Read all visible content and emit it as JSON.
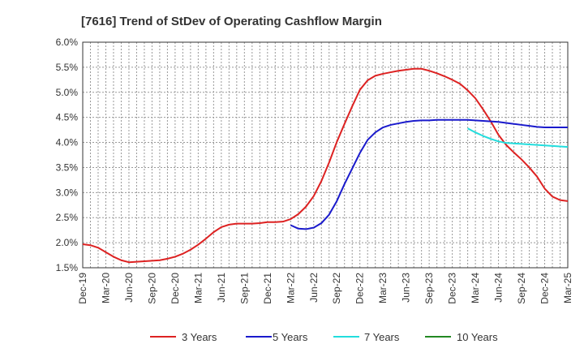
{
  "chart_data": {
    "type": "line",
    "title": "[7616]  Trend of StDev of Operating Cashflow Margin",
    "xlabel": "",
    "ylabel": "",
    "x_ticks": [
      "Dec-19",
      "Mar-20",
      "Jun-20",
      "Sep-20",
      "Dec-20",
      "Mar-21",
      "Jun-21",
      "Sep-21",
      "Dec-21",
      "Mar-22",
      "Jun-22",
      "Sep-22",
      "Dec-22",
      "Mar-23",
      "Jun-23",
      "Sep-23",
      "Dec-23",
      "Mar-24",
      "Jun-24",
      "Sep-24",
      "Dec-24",
      "Mar-25"
    ],
    "y_ticks": [
      "1.5%",
      "2.0%",
      "2.5%",
      "3.0%",
      "3.5%",
      "4.0%",
      "4.5%",
      "5.0%",
      "5.5%",
      "6.0%"
    ],
    "ylim": [
      1.5,
      6.0
    ],
    "grid": true,
    "legend_position": "bottom",
    "series": [
      {
        "name": "3 Years",
        "color": "#dd2222",
        "points": [
          [
            "Dec-19",
            1.97
          ],
          [
            "Jan-20",
            1.95
          ],
          [
            "Feb-20",
            1.9
          ],
          [
            "Mar-20",
            1.81
          ],
          [
            "Apr-20",
            1.72
          ],
          [
            "May-20",
            1.65
          ],
          [
            "Jun-20",
            1.61
          ],
          [
            "Jul-20",
            1.62
          ],
          [
            "Aug-20",
            1.63
          ],
          [
            "Sep-20",
            1.64
          ],
          [
            "Oct-20",
            1.65
          ],
          [
            "Nov-20",
            1.68
          ],
          [
            "Dec-20",
            1.72
          ],
          [
            "Jan-21",
            1.78
          ],
          [
            "Feb-21",
            1.86
          ],
          [
            "Mar-21",
            1.96
          ],
          [
            "Apr-21",
            2.08
          ],
          [
            "May-21",
            2.21
          ],
          [
            "Jun-21",
            2.31
          ],
          [
            "Jul-21",
            2.36
          ],
          [
            "Aug-21",
            2.38
          ],
          [
            "Sep-21",
            2.38
          ],
          [
            "Oct-21",
            2.38
          ],
          [
            "Nov-21",
            2.39
          ],
          [
            "Dec-21",
            2.41
          ],
          [
            "Jan-22",
            2.41
          ],
          [
            "Feb-22",
            2.42
          ],
          [
            "Mar-22",
            2.47
          ],
          [
            "Apr-22",
            2.57
          ],
          [
            "May-22",
            2.72
          ],
          [
            "Jun-22",
            2.93
          ],
          [
            "Jul-22",
            3.23
          ],
          [
            "Aug-22",
            3.6
          ],
          [
            "Sep-22",
            4.01
          ],
          [
            "Oct-22",
            4.37
          ],
          [
            "Nov-22",
            4.72
          ],
          [
            "Dec-22",
            5.05
          ],
          [
            "Jan-23",
            5.24
          ],
          [
            "Feb-23",
            5.33
          ],
          [
            "Mar-23",
            5.37
          ],
          [
            "Apr-23",
            5.4
          ],
          [
            "May-23",
            5.43
          ],
          [
            "Jun-23",
            5.45
          ],
          [
            "Jul-23",
            5.47
          ],
          [
            "Aug-23",
            5.47
          ],
          [
            "Sep-23",
            5.43
          ],
          [
            "Oct-23",
            5.38
          ],
          [
            "Nov-23",
            5.32
          ],
          [
            "Dec-23",
            5.25
          ],
          [
            "Jan-24",
            5.17
          ],
          [
            "Feb-24",
            5.04
          ],
          [
            "Mar-24",
            4.88
          ],
          [
            "Apr-24",
            4.66
          ],
          [
            "May-24",
            4.42
          ],
          [
            "Jun-24",
            4.15
          ],
          [
            "Jul-24",
            3.95
          ],
          [
            "Aug-24",
            3.8
          ],
          [
            "Sep-24",
            3.66
          ],
          [
            "Oct-24",
            3.5
          ],
          [
            "Nov-24",
            3.32
          ],
          [
            "Dec-24",
            3.08
          ],
          [
            "Jan-25",
            2.92
          ],
          [
            "Feb-25",
            2.85
          ],
          [
            "Mar-25",
            2.83
          ]
        ]
      },
      {
        "name": "5 Years",
        "color": "#1a1acc",
        "points": [
          [
            "Mar-22",
            2.35
          ],
          [
            "Apr-22",
            2.28
          ],
          [
            "May-22",
            2.27
          ],
          [
            "Jun-22",
            2.3
          ],
          [
            "Jul-22",
            2.39
          ],
          [
            "Aug-22",
            2.56
          ],
          [
            "Sep-22",
            2.83
          ],
          [
            "Oct-22",
            3.17
          ],
          [
            "Nov-22",
            3.48
          ],
          [
            "Dec-22",
            3.79
          ],
          [
            "Jan-23",
            4.05
          ],
          [
            "Feb-23",
            4.2
          ],
          [
            "Mar-23",
            4.3
          ],
          [
            "Apr-23",
            4.35
          ],
          [
            "May-23",
            4.38
          ],
          [
            "Jun-23",
            4.41
          ],
          [
            "Jul-23",
            4.43
          ],
          [
            "Aug-23",
            4.44
          ],
          [
            "Sep-23",
            4.44
          ],
          [
            "Oct-23",
            4.45
          ],
          [
            "Nov-23",
            4.45
          ],
          [
            "Dec-23",
            4.45
          ],
          [
            "Jan-24",
            4.45
          ],
          [
            "Feb-24",
            4.45
          ],
          [
            "Mar-24",
            4.44
          ],
          [
            "Apr-24",
            4.43
          ],
          [
            "May-24",
            4.42
          ],
          [
            "Jun-24",
            4.41
          ],
          [
            "Jul-24",
            4.39
          ],
          [
            "Aug-24",
            4.37
          ],
          [
            "Sep-24",
            4.35
          ],
          [
            "Oct-24",
            4.33
          ],
          [
            "Nov-24",
            4.31
          ],
          [
            "Dec-24",
            4.3
          ],
          [
            "Jan-25",
            4.3
          ],
          [
            "Feb-25",
            4.3
          ],
          [
            "Mar-25",
            4.3
          ]
        ]
      },
      {
        "name": "7 Years",
        "color": "#22dddd",
        "points": [
          [
            "Feb-24",
            4.28
          ],
          [
            "Mar-24",
            4.2
          ],
          [
            "Apr-24",
            4.13
          ],
          [
            "May-24",
            4.07
          ],
          [
            "Jun-24",
            4.02
          ],
          [
            "Jul-24",
            3.99
          ],
          [
            "Aug-24",
            3.98
          ],
          [
            "Sep-24",
            3.97
          ],
          [
            "Oct-24",
            3.96
          ],
          [
            "Nov-24",
            3.95
          ],
          [
            "Dec-24",
            3.94
          ],
          [
            "Jan-25",
            3.93
          ],
          [
            "Feb-25",
            3.92
          ],
          [
            "Mar-25",
            3.91
          ]
        ]
      },
      {
        "name": "10 Years",
        "color": "#228822",
        "points": []
      }
    ]
  }
}
